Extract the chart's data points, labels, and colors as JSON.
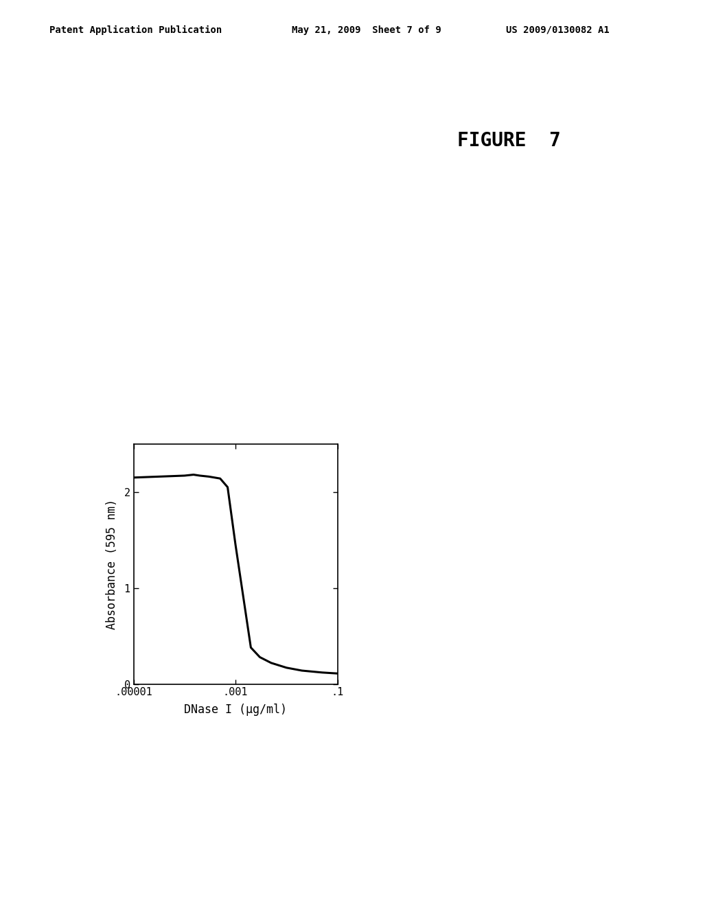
{
  "header_left": "Patent Application Publication",
  "header_mid": "May 21, 2009  Sheet 7 of 9",
  "header_right": "US 2009/0130082 A1",
  "figure_label": "FIGURE  7",
  "xlabel": "DNase I (μg/ml)",
  "ylabel": "Absorbance (595 nm)",
  "x_data": [
    1e-05,
    0.0001,
    0.00015,
    0.0002,
    0.0003,
    0.0005,
    0.0007,
    0.001,
    0.002,
    0.003,
    0.005,
    0.01,
    0.02,
    0.05,
    0.1
  ],
  "y_data": [
    2.15,
    2.17,
    2.18,
    2.17,
    2.16,
    2.14,
    2.05,
    1.45,
    0.38,
    0.28,
    0.22,
    0.17,
    0.14,
    0.12,
    0.11
  ],
  "xlim_log": [
    -5,
    -1
  ],
  "ylim": [
    0,
    2.5
  ],
  "yticks": [
    0,
    1,
    2
  ],
  "xtick_labels": [
    ".00001",
    ".001",
    ".1"
  ],
  "xtick_positions": [
    1e-05,
    0.001,
    0.1
  ],
  "line_color": "#000000",
  "line_width": 2.2,
  "bg_color": "#ffffff",
  "header_fontsize": 10,
  "figure_label_fontsize": 20,
  "axis_label_fontsize": 12,
  "tick_fontsize": 11
}
